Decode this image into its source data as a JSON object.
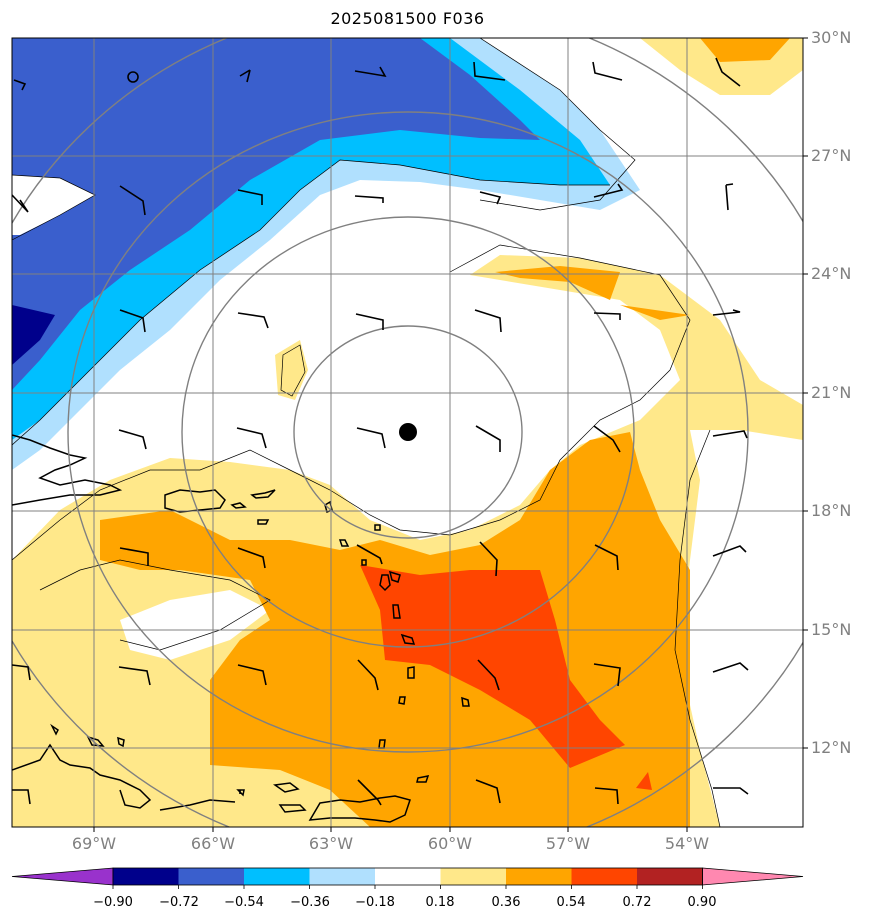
{
  "title": "2025081500 F036",
  "lat_labels": [
    "30°N",
    "27°N",
    "24°N",
    "21°N",
    "18°N",
    "15°N",
    "12°N"
  ],
  "lon_labels": [
    "69°W",
    "66°W",
    "63°W",
    "60°W",
    "57°W",
    "54°W"
  ],
  "colorbar": {
    "ticks": [
      "−0.90",
      "−0.72",
      "−0.54",
      "−0.36",
      "−0.18",
      "0.18",
      "0.36",
      "0.54",
      "0.72",
      "0.90"
    ],
    "colors": [
      "#9932cc",
      "#00008b",
      "#3a5fcd",
      "#00bfff",
      "#b0e0fe",
      "#ffffff",
      "#ffe88a",
      "#ffa500",
      "#ff4500",
      "#b22222",
      "#ff88b0"
    ]
  },
  "storm_center": {
    "lat": 20.0,
    "lon": -61.0
  },
  "colors": {
    "dark_blue": "#00008b",
    "blue": "#3a5fcd",
    "light_blue": "#00bfff",
    "pale_blue": "#b0e0fe",
    "pale_yellow": "#ffe88a",
    "orange": "#ffa500",
    "red_orange": "#ff4500",
    "grid": "#808080"
  }
}
